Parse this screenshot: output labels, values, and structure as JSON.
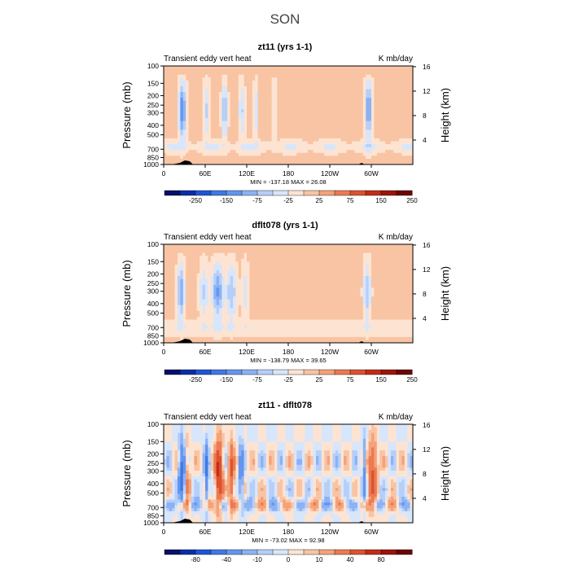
{
  "figure": {
    "title": "SON"
  },
  "axes": {
    "pressure_label": "Pressure (mb)",
    "height_label": "Height (km)",
    "pressure_ticks": [
      "100",
      "150",
      "200",
      "250",
      "300",
      "400",
      "500",
      "700",
      "850",
      "1000"
    ],
    "height_ticks": [
      "16",
      "12",
      "8",
      "4"
    ],
    "lon_ticks": [
      "0",
      "60E",
      "120E",
      "180",
      "120W",
      "60W"
    ]
  },
  "chart_data": [
    {
      "type": "heatmap",
      "title": "zt11 (yrs 1-1)",
      "left_label": "Transient eddy vert heat",
      "right_label": "K mb/day",
      "stats": "MIN = -137.18   MAX =   26.08",
      "colorbar_labels": [
        "-250",
        "-150",
        "-75",
        "-25",
        "25",
        "75",
        "150",
        "250"
      ],
      "colorbar_colors": [
        "#05106a",
        "#0a2ea8",
        "#1f55d6",
        "#3f78e6",
        "#6495ee",
        "#8cb2f4",
        "#b6cff9",
        "#d8e6fb",
        "#fde4d2",
        "#f8c4a4",
        "#f4a27a",
        "#ec7a52",
        "#dc5230",
        "#c22d17",
        "#9c1408",
        "#6b0503"
      ],
      "min": -137.18,
      "max": 26.08
    },
    {
      "type": "heatmap",
      "title": "dflt078 (yrs 1-1)",
      "left_label": "Transient eddy vert heat",
      "right_label": "K mb/day",
      "stats": "MIN = -138.79   MAX =   39.65",
      "colorbar_labels": [
        "-250",
        "-150",
        "-75",
        "-25",
        "25",
        "75",
        "150",
        "250"
      ],
      "colorbar_colors": [
        "#05106a",
        "#0a2ea8",
        "#1f55d6",
        "#3f78e6",
        "#6495ee",
        "#8cb2f4",
        "#b6cff9",
        "#d8e6fb",
        "#fde4d2",
        "#f8c4a4",
        "#f4a27a",
        "#ec7a52",
        "#dc5230",
        "#c22d17",
        "#9c1408",
        "#6b0503"
      ],
      "min": -138.79,
      "max": 39.65
    },
    {
      "type": "heatmap",
      "title": "zt11 - dflt078",
      "left_label": "Transient eddy vert heat",
      "right_label": "K mb/day",
      "stats": "MIN = -73.02   MAX =   92.98",
      "colorbar_labels": [
        "-80",
        "-40",
        "-10",
        "0",
        "10",
        "40",
        "80"
      ],
      "colorbar_colors": [
        "#05106a",
        "#0a2ea8",
        "#1f55d6",
        "#3f78e6",
        "#6495ee",
        "#8cb2f4",
        "#b6cff9",
        "#d8e6fb",
        "#fde4d2",
        "#f8c4a4",
        "#f4a27a",
        "#ec7a52",
        "#dc5230",
        "#c22d17",
        "#9c1408",
        "#6b0503"
      ],
      "min": -73.02,
      "max": 92.98
    }
  ]
}
